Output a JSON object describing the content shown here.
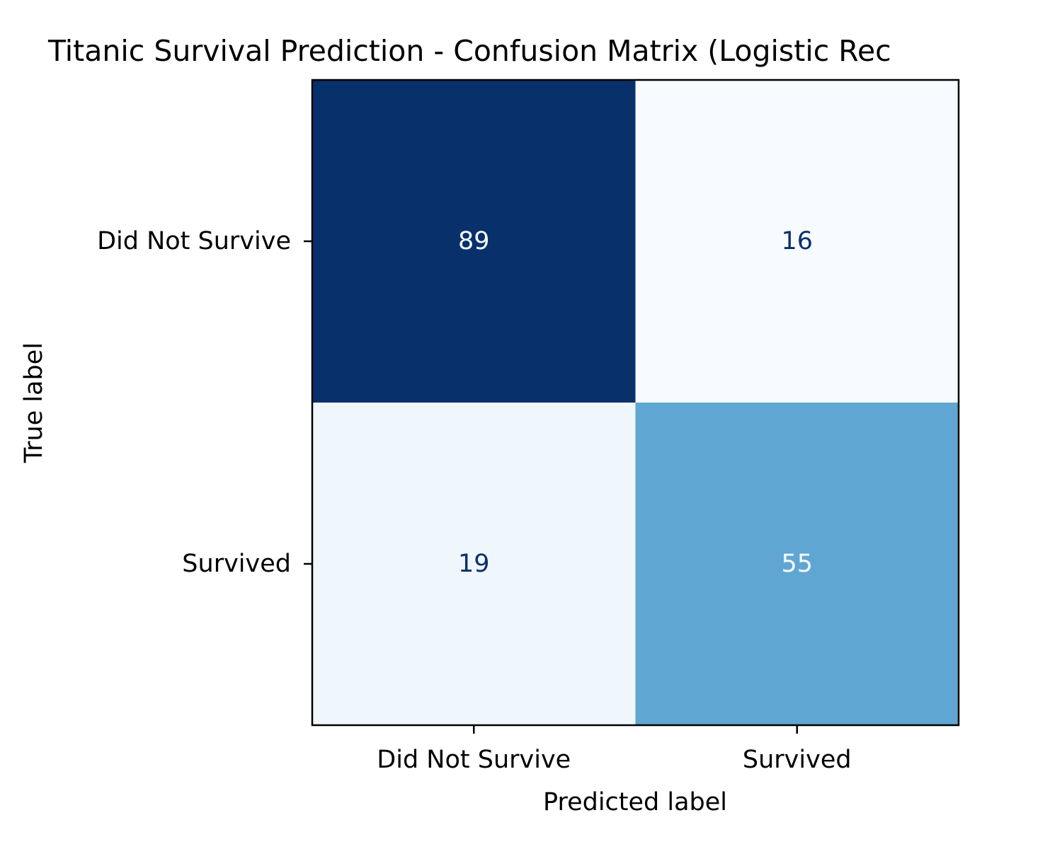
{
  "chart_data": {
    "type": "heatmap",
    "title": "Titanic Survival Prediction - Confusion Matrix (Logistic Rec",
    "xlabel": "Predicted label",
    "ylabel": "True label",
    "x_categories": [
      "Did Not Survive",
      "Survived"
    ],
    "y_categories": [
      "Did Not Survive",
      "Survived"
    ],
    "matrix": [
      [
        89,
        16
      ],
      [
        19,
        55
      ]
    ],
    "colormap": "Blues",
    "color_range": [
      16,
      89
    ],
    "colorbar": false,
    "grid": false
  }
}
